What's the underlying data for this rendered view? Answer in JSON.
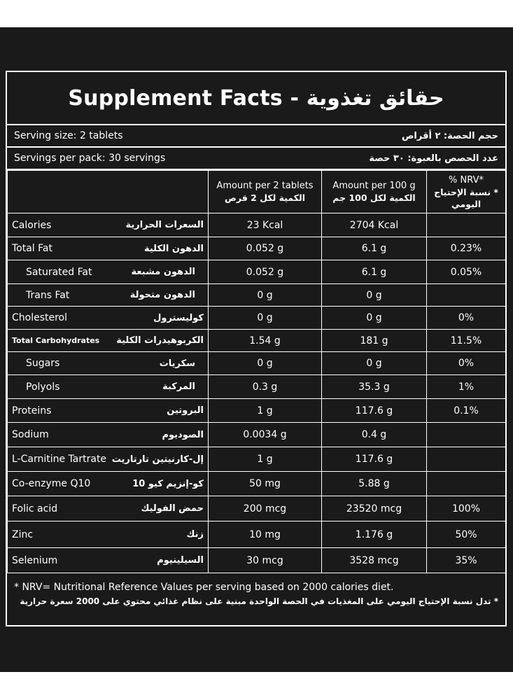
{
  "title": {
    "en": "Supplement Facts -",
    "ar": "حقائق تغذوية"
  },
  "serving_size": {
    "en": "Serving size: 2 tablets",
    "ar": "حجم الحصة: ٢ أقراص"
  },
  "servings_per_pack": {
    "en": "Servings per pack: 30 servings",
    "ar": "عدد الحصص بالعبوة: ٣٠ حصة"
  },
  "columns": {
    "per_serving": {
      "en": "Amount per 2 tablets",
      "ar": "الكمية لكل 2 قرص"
    },
    "per_100g": {
      "en": "Amount per 100 g",
      "ar": "الكمية لكل 100 جم"
    },
    "nrv": {
      "en": "% NRV*",
      "ar": "* نسبة الإحتياج اليومي"
    }
  },
  "rows": [
    {
      "en": "Calories",
      "ar": "السعرات الحرارية",
      "per_serving": "23 Kcal",
      "per_100g": "2704 Kcal",
      "nrv": ""
    },
    {
      "en": "Total Fat",
      "ar": "الدهون الكلية",
      "per_serving": "0.052 g",
      "per_100g": "6.1 g",
      "nrv": "0.23%"
    },
    {
      "en": "Saturated Fat",
      "ar": "الدهون مشبعة",
      "per_serving": "0.052 g",
      "per_100g": "6.1 g",
      "nrv": "0.05%"
    },
    {
      "en": "Trans Fat",
      "ar": "الدهون متحولة",
      "per_serving": "0 g",
      "per_100g": "0 g",
      "nrv": ""
    },
    {
      "en": "Cholesterol",
      "ar": "كوليسترول",
      "per_serving": "0 g",
      "per_100g": "0 g",
      "nrv": "0%"
    },
    {
      "en": "Total Carbohydrates",
      "ar": "الكربوهيدرات الكلية",
      "per_serving": "1.54 g",
      "per_100g": "181 g",
      "nrv": "11.5%"
    },
    {
      "en": "Sugars",
      "ar": "سكريات",
      "per_serving": "0 g",
      "per_100g": "0 g",
      "nrv": "0%"
    },
    {
      "en": "Polyols",
      "ar": "المركبة",
      "per_serving": "0.3 g",
      "per_100g": "35.3 g",
      "nrv": "1%"
    },
    {
      "en": "Proteins",
      "ar": "البروتين",
      "per_serving": "1 g",
      "per_100g": "117.6 g",
      "nrv": "0.1%"
    },
    {
      "en": "Sodium",
      "ar": "الصوديوم",
      "per_serving": "0.0034 g",
      "per_100g": "0.4 g",
      "nrv": ""
    },
    {
      "en": "L-Carnitine Tartrate",
      "ar": "إل-كارنيتين تارتاريت",
      "per_serving": "1 g",
      "per_100g": "117.6 g",
      "nrv": ""
    },
    {
      "en": "Co-enzyme Q10",
      "ar": "كو-إنزيم كيو 10",
      "per_serving": "50 mg",
      "per_100g": "5.88 g",
      "nrv": ""
    },
    {
      "en": "Folic acid",
      "ar": "حمض الفوليك",
      "per_serving": "200 mcg",
      "per_100g": "23520 mcg",
      "nrv": "100%"
    },
    {
      "en": "Zinc",
      "ar": "زنك",
      "per_serving": "10 mg",
      "per_100g": "1.176 g",
      "nrv": "50%"
    },
    {
      "en": "Selenium",
      "ar": "السيلينيوم",
      "per_serving": "30 mcg",
      "per_100g": "3528 mcg",
      "nrv": "35%"
    }
  ],
  "footnote": {
    "en": "* NRV= Nutritional Reference Values per serving based on 2000 calories diet.",
    "ar": "* تدل نسبة الإحتياج اليومي على المغذيات في الحصة الواحدة مبنية على نظام غذائي محتوي على 2000 سعرة حرارية"
  }
}
